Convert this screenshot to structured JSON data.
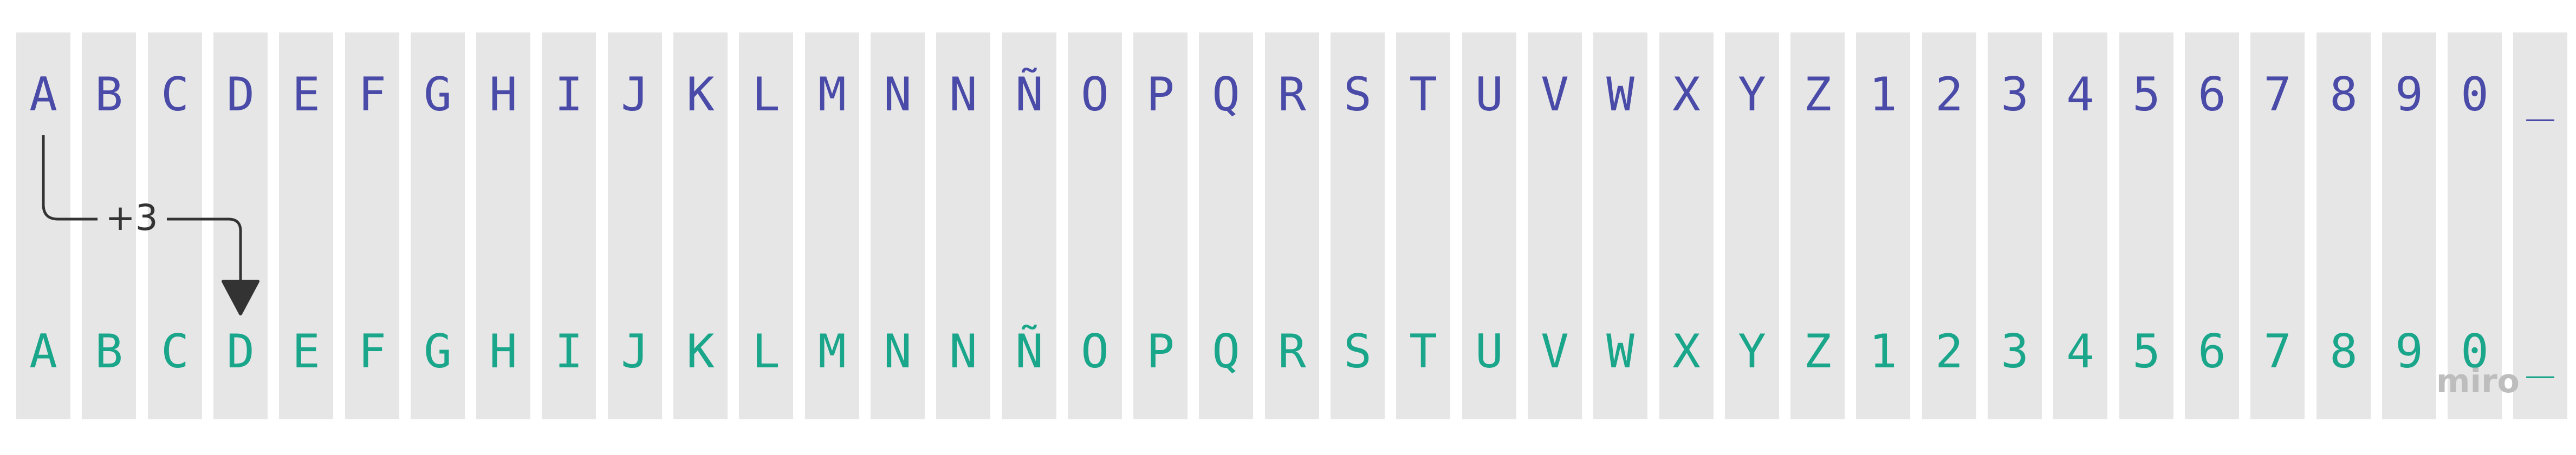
{
  "cipher": {
    "plain_alphabet": [
      "A",
      "B",
      "C",
      "D",
      "E",
      "F",
      "G",
      "H",
      "I",
      "J",
      "K",
      "L",
      "M",
      "N",
      "N",
      "Ñ",
      "O",
      "P",
      "Q",
      "R",
      "S",
      "T",
      "U",
      "V",
      "W",
      "X",
      "Y",
      "Z",
      "1",
      "2",
      "3",
      "4",
      "5",
      "6",
      "7",
      "8",
      "9",
      "0",
      "_"
    ],
    "cipher_alphabet": [
      "A",
      "B",
      "C",
      "D",
      "E",
      "F",
      "G",
      "H",
      "I",
      "J",
      "K",
      "L",
      "M",
      "N",
      "N",
      "Ñ",
      "O",
      "P",
      "Q",
      "R",
      "S",
      "T",
      "U",
      "V",
      "W",
      "X",
      "Y",
      "Z",
      "1",
      "2",
      "3",
      "4",
      "5",
      "6",
      "7",
      "8",
      "9",
      "0",
      "_"
    ],
    "shift_label": "+3",
    "shift": 3,
    "arrow_from_index": 0,
    "arrow_to_index": 3
  },
  "colors": {
    "column_background": "#e6e6e6",
    "plain_text": "#4a4aa8",
    "cipher_text": "#1aa68a",
    "arrow": "#333333"
  },
  "watermark": {
    "text": "miro"
  }
}
